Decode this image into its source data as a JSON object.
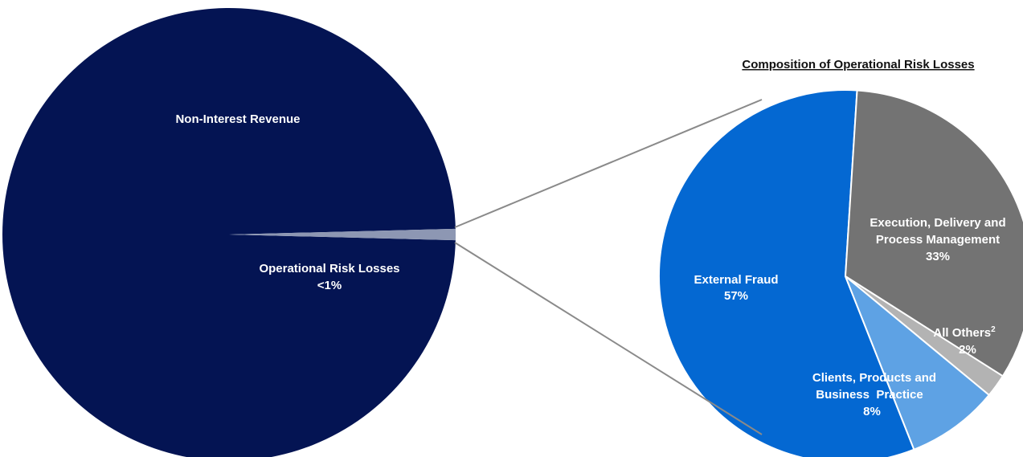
{
  "chart_data": [
    {
      "type": "pie",
      "title": "",
      "slices": [
        {
          "label": "Non-Interest Revenue",
          "value_label": "",
          "value": 99.2,
          "color": "#041453"
        },
        {
          "label": "Operational Risk Losses",
          "value_label": "<1%",
          "value": 0.8,
          "color": "#8d97b3"
        }
      ]
    },
    {
      "type": "pie",
      "title": "Composition of Operational Risk Losses",
      "slices": [
        {
          "label": "External Fraud",
          "value_label": "57%",
          "value": 57,
          "color": "#0468d2"
        },
        {
          "label": "Execution, Delivery and Process Management",
          "label_lines": [
            "Execution, Delivery and",
            "Process Management"
          ],
          "value_label": "33%",
          "value": 33,
          "color": "#737373"
        },
        {
          "label": "All Others",
          "label_sup": "2",
          "value_label": "2%",
          "value": 2,
          "color": "#b3b3b3"
        },
        {
          "label": "Clients, Products and Business Practice",
          "label_lines": [
            "Clients, Products and",
            "Business  Practice"
          ],
          "value_label": "8%",
          "value": 8,
          "color": "#5ea2e4"
        }
      ]
    }
  ]
}
